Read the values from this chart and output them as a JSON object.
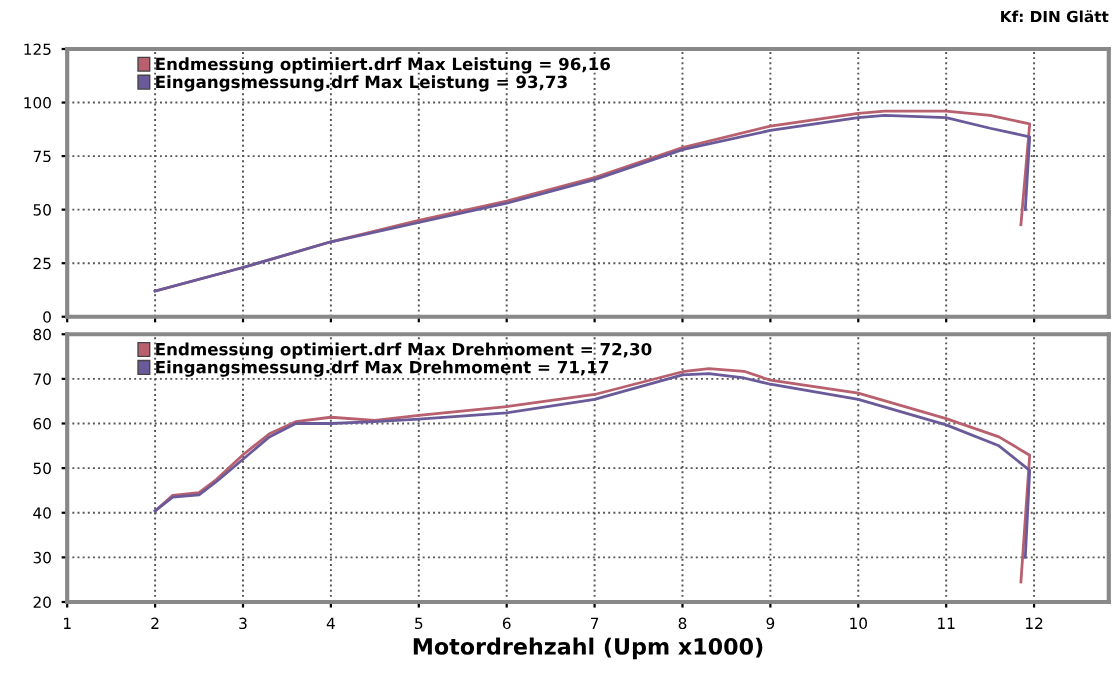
{
  "chart_data": [
    {
      "type": "line",
      "annotations": [
        "Kf: DIN Glätt"
      ],
      "xlim": [
        1,
        12.85
      ],
      "xticks": [
        1,
        2,
        3,
        4,
        5,
        6,
        7,
        8,
        9,
        10,
        11,
        12
      ],
      "ylim": [
        0,
        125
      ],
      "yticks": [
        0,
        25,
        50,
        75,
        100,
        125
      ],
      "tick_labels": "y",
      "grid": true,
      "legend": "top left",
      "line_style": "solid",
      "marker": "none",
      "series": [
        {
          "name": "Endmessung optimiert.drf Max Leistung = 96,16",
          "color": "#b8606e",
          "x": [
            2,
            3,
            4,
            5,
            6,
            7,
            8,
            9,
            10,
            10.3,
            11,
            11.5,
            11.95,
            11.85
          ],
          "values": [
            12,
            23,
            35,
            45,
            54,
            65,
            79,
            89,
            95,
            96,
            96,
            94,
            90,
            43
          ]
        },
        {
          "name": "Eingangsmessung.drf Max Leistung = 93,73",
          "color": "#6a5a9a",
          "x": [
            2,
            3,
            4,
            5,
            6,
            7,
            8,
            9,
            10,
            10.3,
            11,
            11.5,
            11.95,
            11.9
          ],
          "values": [
            12,
            23,
            35,
            44,
            53,
            64,
            78,
            87,
            93,
            94,
            93,
            88,
            84,
            50
          ]
        }
      ]
    },
    {
      "type": "line",
      "xlabel": "Motordrehzahl (Upm x1000)",
      "xlim": [
        1,
        12.85
      ],
      "xticks": [
        1,
        2,
        3,
        4,
        5,
        6,
        7,
        8,
        9,
        10,
        11,
        12
      ],
      "ylim": [
        20,
        80
      ],
      "yticks": [
        20,
        30,
        40,
        50,
        60,
        70,
        80
      ],
      "grid": true,
      "legend": "top left",
      "line_style": "solid",
      "marker": "none",
      "series": [
        {
          "name": "Endmessung optimiert.drf Max Drehmoment = 72,30",
          "color": "#b8606e",
          "x": [
            2,
            2.2,
            2.5,
            2.7,
            3,
            3.3,
            3.6,
            4,
            4.5,
            5,
            6,
            7,
            8,
            8.3,
            8.7,
            9,
            10,
            11,
            11.6,
            11.95,
            11.85
          ],
          "values": [
            40.4,
            43.9,
            44.5,
            47.5,
            53,
            57.7,
            60.4,
            61.4,
            60.7,
            61.8,
            63.8,
            66.5,
            71.6,
            72.3,
            71.7,
            69.7,
            66.8,
            61.1,
            57,
            52.9,
            24.5
          ]
        },
        {
          "name": "Eingangsmessung.drf Max Drehmoment = 71,17",
          "color": "#6a5a9a",
          "x": [
            2,
            2.2,
            2.5,
            2.7,
            3,
            3.3,
            3.6,
            4,
            4.5,
            5,
            6,
            7,
            8,
            8.3,
            8.7,
            9,
            10,
            11,
            11.6,
            11.95,
            11.9
          ],
          "values": [
            40.4,
            43.5,
            44,
            47,
            52,
            57,
            60,
            60,
            60.4,
            61,
            62.4,
            65.4,
            70.9,
            71.2,
            70.2,
            68.8,
            65.4,
            59.7,
            55,
            49.5,
            30
          ]
        }
      ]
    }
  ]
}
